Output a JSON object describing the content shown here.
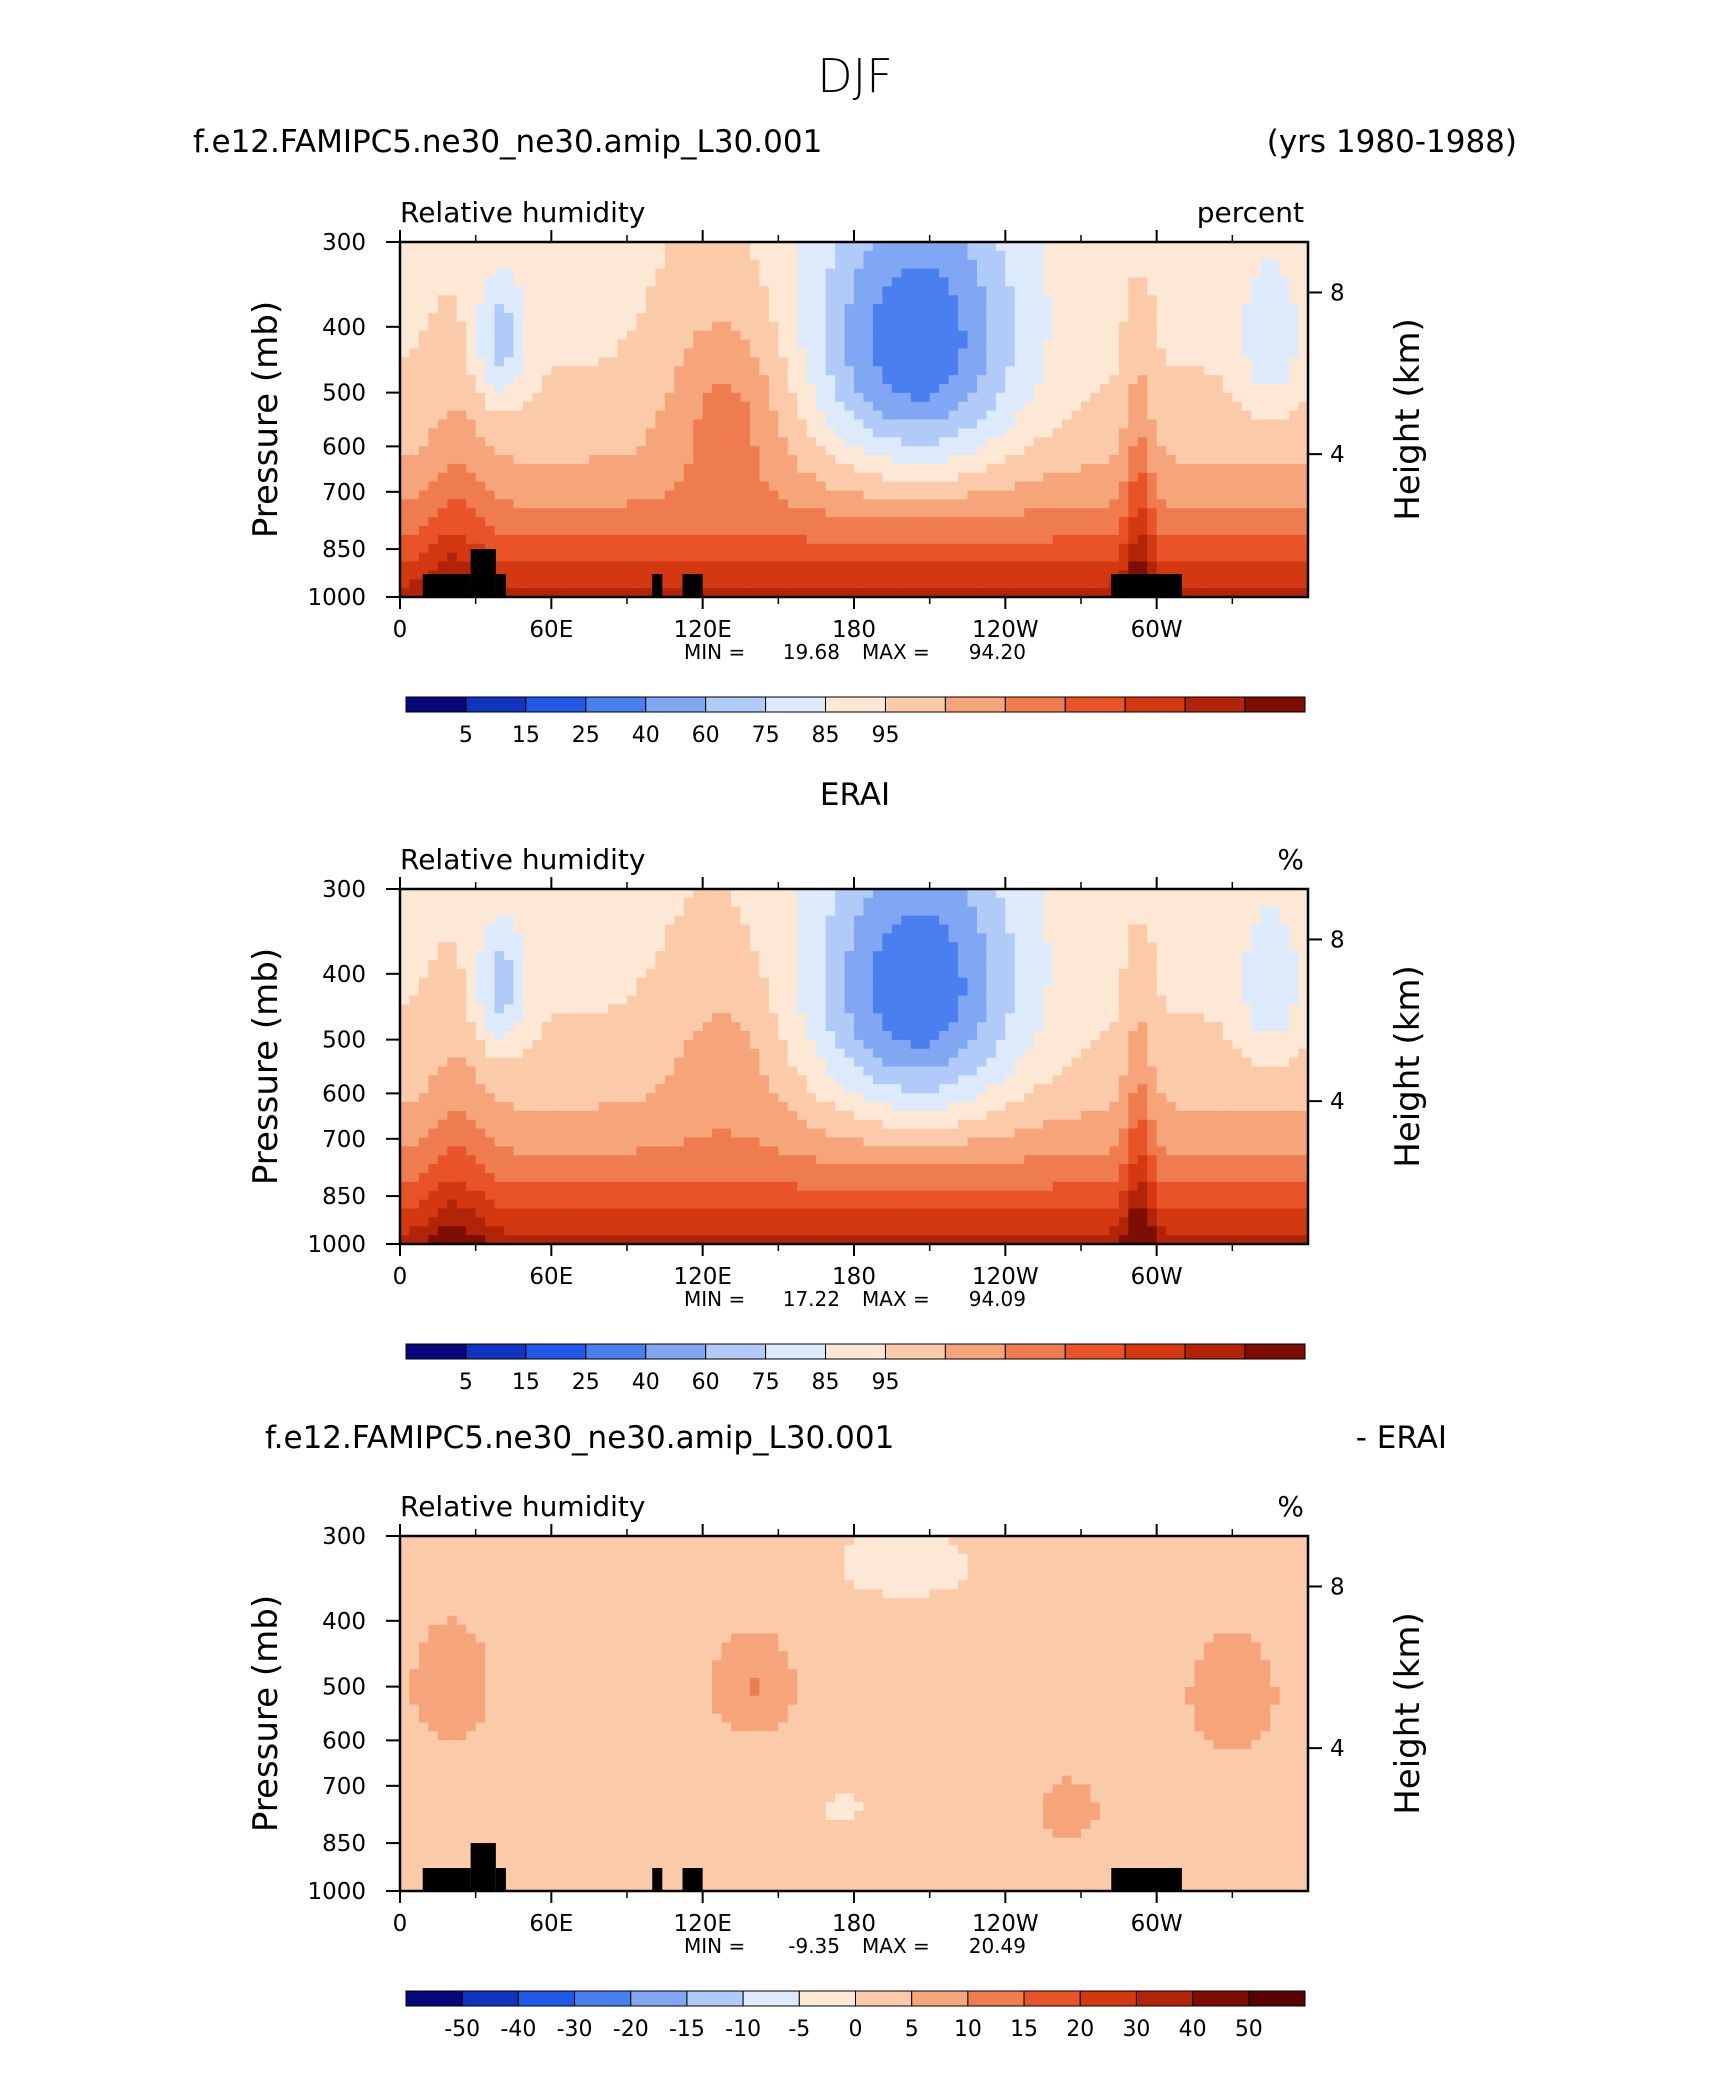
{
  "figure_title": "DJF",
  "chart_data": [
    {
      "type": "heatmap",
      "title_left": "f.e12.FAMIPC5.ne30_ne30.amip_L30.001",
      "title_right": "(yrs 1980-1988)",
      "subtitle_left": "Relative humidity",
      "subtitle_right": "percent",
      "ylabel": "Pressure (mb)",
      "ylabel_right": "Height (km)",
      "x_ticks": [
        "0",
        "60E",
        "120E",
        "180",
        "120W",
        "60W"
      ],
      "y_ticks": [
        "300",
        "400",
        "500",
        "600",
        "700",
        "850",
        "1000"
      ],
      "y_ticks_right": [
        "4",
        "8"
      ],
      "min_label": "MIN =",
      "min_value": "19.68",
      "max_label": "MAX =",
      "max_value": "94.20",
      "colorbar_labels": [
        "5",
        "15",
        "25",
        "40",
        "60",
        "75",
        "85",
        "95"
      ],
      "colorbar_colors": [
        "#08087c",
        "#1034c0",
        "#2058e8",
        "#4a7ff0",
        "#80a6f4",
        "#b0cbf8",
        "#dceafb",
        "#fde8d6",
        "#fbcaa8",
        "#f6a47a",
        "#ef7c4e",
        "#e85428",
        "#d33810",
        "#b22408",
        "#7e0e04"
      ],
      "colorbar_vmin": 0,
      "colorbar_vmax": 100
    },
    {
      "type": "heatmap",
      "title_center": "ERAI",
      "subtitle_left": "Relative humidity",
      "subtitle_right": "%",
      "ylabel": "Pressure (mb)",
      "ylabel_right": "Height (km)",
      "x_ticks": [
        "0",
        "60E",
        "120E",
        "180",
        "120W",
        "60W"
      ],
      "y_ticks": [
        "300",
        "400",
        "500",
        "600",
        "700",
        "850",
        "1000"
      ],
      "y_ticks_right": [
        "4",
        "8"
      ],
      "min_label": "MIN =",
      "min_value": "17.22",
      "max_label": "MAX =",
      "max_value": "94.09",
      "colorbar_labels": [
        "5",
        "15",
        "25",
        "40",
        "60",
        "75",
        "85",
        "95"
      ],
      "colorbar_colors": [
        "#08087c",
        "#1034c0",
        "#2058e8",
        "#4a7ff0",
        "#80a6f4",
        "#b0cbf8",
        "#dceafb",
        "#fde8d6",
        "#fbcaa8",
        "#f6a47a",
        "#ef7c4e",
        "#e85428",
        "#d33810",
        "#b22408",
        "#7e0e04"
      ],
      "colorbar_vmin": 0,
      "colorbar_vmax": 100
    },
    {
      "type": "heatmap",
      "title_left": "f.e12.FAMIPC5.ne30_ne30.amip_L30.001",
      "title_right": "- ERAI",
      "subtitle_left": "Relative humidity",
      "subtitle_right": "%",
      "ylabel": "Pressure (mb)",
      "ylabel_right": "Height (km)",
      "x_ticks": [
        "0",
        "60E",
        "120E",
        "180",
        "120W",
        "60W"
      ],
      "y_ticks": [
        "300",
        "400",
        "500",
        "600",
        "700",
        "850",
        "1000"
      ],
      "y_ticks_right": [
        "4",
        "8"
      ],
      "min_label": "MIN =",
      "min_value": "-9.35",
      "max_label": "MAX =",
      "max_value": "20.49",
      "colorbar_labels": [
        "-50",
        "-40",
        "-30",
        "-20",
        "-15",
        "-10",
        "-5",
        "0",
        "5",
        "10",
        "15",
        "20",
        "30",
        "40",
        "50"
      ],
      "colorbar_colors": [
        "#08087c",
        "#1034c0",
        "#2058e8",
        "#4a7ff0",
        "#80a6f4",
        "#b0cbf8",
        "#dceafb",
        "#fde8d6",
        "#fbcaa8",
        "#f6a47a",
        "#ef7c4e",
        "#e85428",
        "#d33810",
        "#b22408",
        "#7e0e04",
        "#5a0402"
      ],
      "colorbar_vmin": -55,
      "colorbar_vmax": 55
    }
  ]
}
